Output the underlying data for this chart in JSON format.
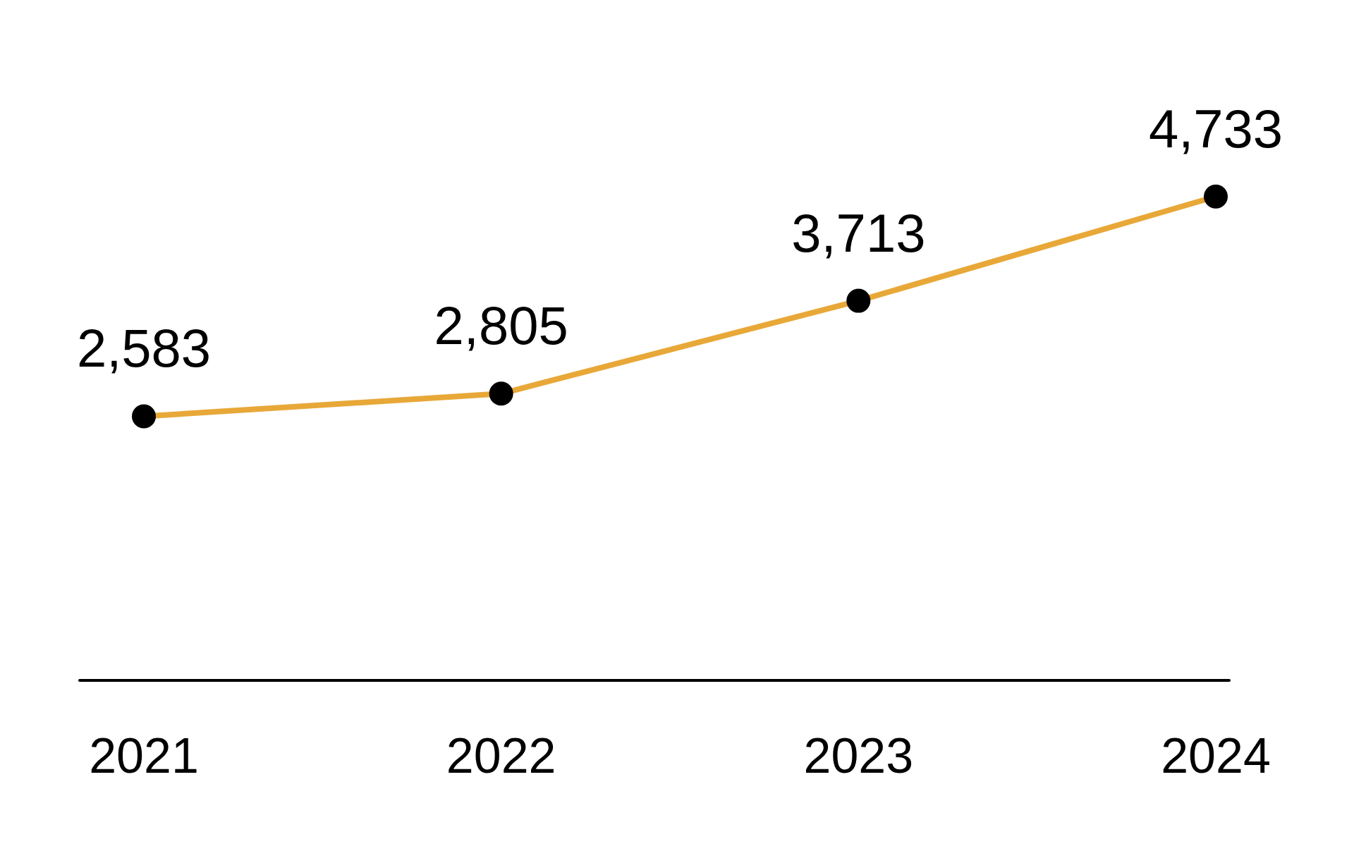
{
  "chart_data": {
    "type": "line",
    "categories": [
      "2021",
      "2022",
      "2023",
      "2024"
    ],
    "series": [
      {
        "color": "#e8a838",
        "values": [
          2583,
          2805,
          3713,
          4733
        ],
        "value_labels": [
          "2,583",
          "2,805",
          "3,713",
          "4,733"
        ]
      }
    ],
    "marker": "circle",
    "grid": false,
    "legend": false,
    "tick_labels": "x"
  }
}
